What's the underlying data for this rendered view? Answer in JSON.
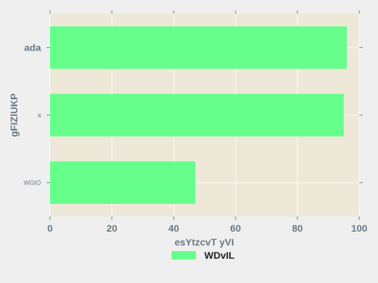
{
  "chart_data": {
    "type": "bar",
    "orientation": "horizontal",
    "categories": [
      "ada",
      "a",
      "WGtO"
    ],
    "series": [
      {
        "name": "WDvIL",
        "values": [
          96,
          95,
          47
        ]
      }
    ],
    "xlabel": "esYtzcvT yVI",
    "ylabel": "gFIZlUKP",
    "xlim": [
      0,
      100
    ],
    "xticks": [
      0,
      20,
      40,
      60,
      80,
      100
    ],
    "grid": true,
    "legend_position": "bottom-center",
    "colors": {
      "bar": "#66ff8c",
      "plot_background": "#eee8d8",
      "figure_background": "#efefef",
      "grid": "#ffffff",
      "tick_text": "#687986"
    }
  }
}
